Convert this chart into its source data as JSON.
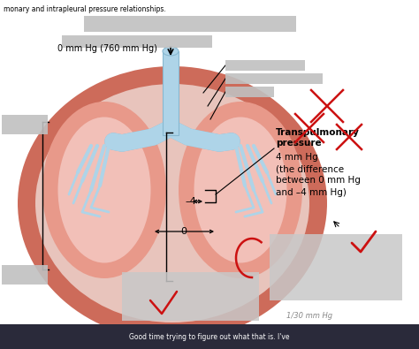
{
  "bg_color": "#ffffff",
  "title_text": "monary and intrapleural pressure relationships.",
  "transpulmonary_label_bold": "Transpulmonary\npressure",
  "transpulmonary_label_rest": "4 mm Hg\n(the difference\nbetween 0 mm Hg\nand –4 mm Hg)",
  "label_top": "0 mm Hg (760 mm Hg)",
  "label_minus4": "–4",
  "label_zero": "0",
  "outer_body_color": "#cd6b5a",
  "pleural_color": "#e8c4bc",
  "lung_outer_color": "#e8998a",
  "lung_inner_color": "#f2c0b8",
  "airway_color": "#aed4e8",
  "airway_edge": "#88b8d0",
  "red_mark_color": "#cc1111",
  "bottom_bar_color": "#2a2a3a",
  "bottom_bar_text": "Good time trying to figure out what that is. I've",
  "bottom_overlay_text": "1/30 mm Hg"
}
